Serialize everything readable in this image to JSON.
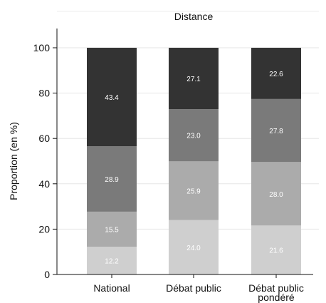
{
  "chart_data": {
    "type": "bar",
    "stacked": true,
    "title": "Distance",
    "xlabel": "",
    "ylabel": "Proportion (en %)",
    "ylim": [
      0,
      100
    ],
    "yticks": [
      0,
      20,
      40,
      60,
      80,
      100
    ],
    "grid": true,
    "legend": "none",
    "categories": [
      [
        "National"
      ],
      [
        "Débat public"
      ],
      [
        "Débat public",
        "pondéré"
      ]
    ],
    "series": [
      {
        "color": "#cfcfcf",
        "values": [
          12.2,
          24.0,
          21.6
        ],
        "labels": [
          "12.2",
          "24.0",
          "21.6"
        ]
      },
      {
        "color": "#ababab",
        "values": [
          15.5,
          25.9,
          28.0
        ],
        "labels": [
          "15.5",
          "25.9",
          "28.0"
        ]
      },
      {
        "color": "#7a7a7a",
        "values": [
          28.9,
          23.0,
          27.8
        ],
        "labels": [
          "28.9",
          "23.0",
          "27.8"
        ]
      },
      {
        "color": "#333333",
        "values": [
          43.4,
          27.1,
          22.6
        ],
        "labels": [
          "43.4",
          "27.1",
          "22.6"
        ]
      }
    ]
  }
}
